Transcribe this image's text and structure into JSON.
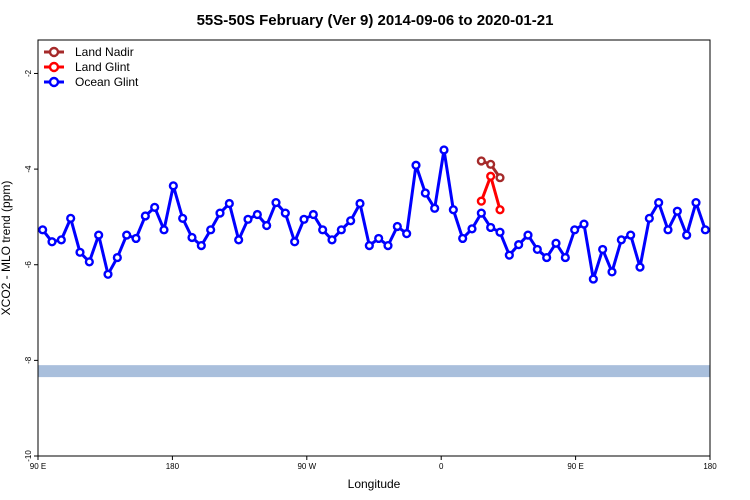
{
  "chart_data": {
    "type": "line",
    "title": "55S-50S February (Ver 9)   2014-09-06 to 2020-01-21",
    "xlabel": "Longitude",
    "ylabel": "XCO2 - MLO trend (ppm)",
    "xlim": [
      90,
      450
    ],
    "ylim": [
      -10.0,
      -1.3
    ],
    "x_ticks": [
      {
        "value": 90,
        "label": "90 E"
      },
      {
        "value": 180,
        "label": "180"
      },
      {
        "value": 270,
        "label": "90 W"
      },
      {
        "value": 360,
        "label": "0"
      },
      {
        "value": 450,
        "label": "90 E"
      },
      {
        "value": 540,
        "label": "180"
      }
    ],
    "y_ticks": [
      -2,
      -4,
      -6,
      -8,
      -10
    ],
    "legend_position": "top-left",
    "series": [
      {
        "name": "Land Nadir",
        "color": "#a52a2a",
        "x": [
          327.5,
          332.5,
          337.5
        ],
        "y": [
          -3.83,
          -3.9,
          -4.18
        ]
      },
      {
        "name": "Land Glint",
        "color": "#ff0000",
        "x": [
          327.5,
          332.5,
          337.5
        ],
        "y": [
          -4.67,
          -4.15,
          -4.85
        ]
      },
      {
        "name": "Ocean Glint",
        "color": "#0000ff",
        "x": [
          92.5,
          97.5,
          102.5,
          107.5,
          112.5,
          117.5,
          122.5,
          127.5,
          132.5,
          137.5,
          142.5,
          147.5,
          152.5,
          157.5,
          162.5,
          167.5,
          172.5,
          177.5,
          182.5,
          187.5,
          192.5,
          197.5,
          202.5,
          207.5,
          212.5,
          217.5,
          222.5,
          227.5,
          232.5,
          237.5,
          242.5,
          247.5,
          252.5,
          257.5,
          262.5,
          267.5,
          272.5,
          277.5,
          282.5,
          287.5,
          292.5,
          297.5,
          302.5,
          307.5,
          312.5,
          317.5,
          322.5,
          327.5,
          332.5,
          337.5,
          342.5,
          347.5,
          352.5,
          357.5,
          362.5,
          367.5,
          372.5,
          377.5,
          382.5,
          387.5,
          392.5,
          397.5,
          402.5,
          407.5,
          412.5,
          417.5,
          422.5,
          427.5,
          432.5,
          437.5,
          442.5,
          447.5
        ],
        "y": [
          -5.27,
          -5.52,
          -5.48,
          -5.03,
          -5.74,
          -5.94,
          -5.38,
          -6.2,
          -5.85,
          -5.38,
          -5.45,
          -4.98,
          -4.8,
          -5.27,
          -4.35,
          -5.03,
          -5.43,
          -5.6,
          -5.27,
          -4.92,
          -4.72,
          -5.48,
          -5.05,
          -4.95,
          -5.18,
          -4.7,
          -4.92,
          -5.52,
          -5.05,
          -4.95,
          -5.27,
          -5.48,
          -5.27,
          -5.08,
          -4.72,
          -5.6,
          -5.45,
          -5.6,
          -5.2,
          -5.35,
          -3.92,
          -4.5,
          -4.82,
          -3.6,
          -4.85,
          -5.45,
          -5.25,
          -4.92,
          -5.22,
          -5.32,
          -5.8,
          -5.58,
          -5.38,
          -5.68,
          -5.85,
          -5.55,
          -5.85,
          -5.27,
          -5.15,
          -6.3,
          -5.68,
          -6.15,
          -5.48,
          -5.38,
          -6.05,
          -5.03,
          -4.7,
          -5.27,
          -4.88,
          -5.38,
          -4.7,
          -5.27
        ],
        "y_tail_note": ""
      }
    ],
    "band": {
      "y_from": -8.1,
      "y_to": -8.35,
      "color": "#a9bfdc"
    }
  }
}
